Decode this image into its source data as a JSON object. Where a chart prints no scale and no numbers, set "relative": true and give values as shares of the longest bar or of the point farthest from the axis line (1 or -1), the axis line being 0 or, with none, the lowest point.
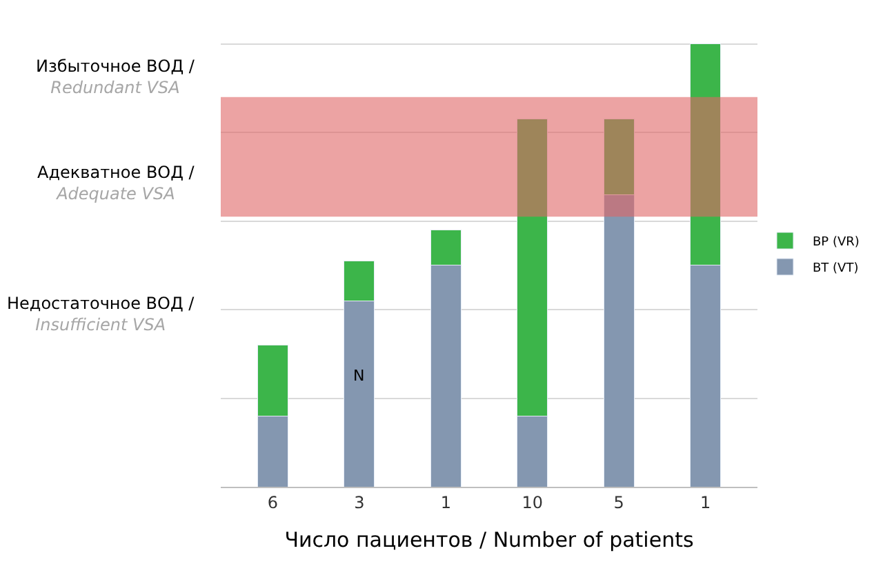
{
  "chart_data": {
    "type": "bar",
    "stacked": true,
    "relative": true,
    "xlabel": "Число пациентов / Number of patients",
    "categories": [
      "6",
      "3",
      "1",
      "10",
      "5",
      "1"
    ],
    "series": [
      {
        "name": "ВТ (VT)",
        "color": "#8497b0",
        "values": [
          0.16,
          0.42,
          0.5,
          0.16,
          0.66,
          0.5
        ]
      },
      {
        "name": "ВР (VR)",
        "color": "#3cb54a",
        "values": [
          0.16,
          0.09,
          0.08,
          0.67,
          0.17,
          0.5
        ]
      }
    ],
    "bands": [
      {
        "axis": "y",
        "from": 0.61,
        "to": 0.88,
        "color": "#e06666"
      }
    ],
    "annotations": [
      "Избыточное ВОД /\nRedundant VSA",
      "Адекватное ВОД /\nAdequate VSA",
      "Недостаточное ВОД /\nInsufficient VSA",
      "N"
    ],
    "grid": "y",
    "legend": "right"
  }
}
